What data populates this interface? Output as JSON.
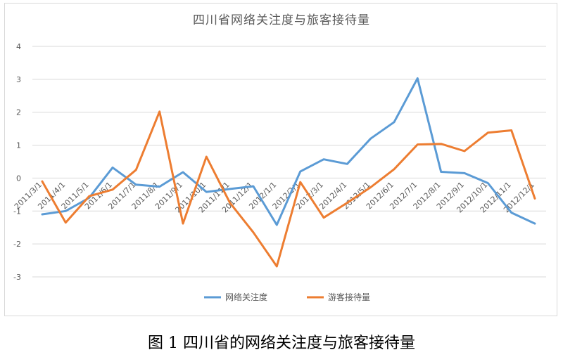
{
  "chart_data": {
    "type": "line",
    "title": "四川省网络关注度与旅客接待量",
    "categories": [
      "2011/3/1",
      "2011/4/1",
      "2011/5/1",
      "2011/6/1",
      "2011/7/1",
      "2011/8/1",
      "2011/9/1",
      "2011/10/1",
      "2011/11/1",
      "2011/12/1",
      "2012/1/1",
      "2012/2/1",
      "2012/3/1",
      "2012/4/1",
      "2012/5/1",
      "2012/6/1",
      "2012/7/1",
      "2012/8/1",
      "2012/9/1",
      "2012/10/1",
      "2012/11/1",
      "2012/12/1"
    ],
    "series": [
      {
        "name": "网络关注度",
        "color": "#5b9bd5",
        "values": [
          -1.1,
          -1.0,
          -0.6,
          0.32,
          -0.2,
          -0.26,
          0.18,
          -0.42,
          -0.33,
          -0.25,
          -1.42,
          0.2,
          0.57,
          0.43,
          1.2,
          1.7,
          3.03,
          0.19,
          0.15,
          -0.15,
          -1.05,
          -1.38
        ]
      },
      {
        "name": "游客接待量",
        "color": "#ed7d31",
        "values": [
          -0.1,
          -1.35,
          -0.55,
          -0.35,
          0.25,
          2.02,
          -1.38,
          0.65,
          -0.75,
          -1.65,
          -2.68,
          -0.12,
          -1.2,
          -0.75,
          -0.28,
          0.27,
          1.02,
          1.04,
          0.82,
          1.38,
          1.45,
          -0.62
        ]
      }
    ],
    "yticks": [
      -3,
      -2,
      -1,
      0,
      1,
      2,
      3,
      4
    ],
    "ylim": [
      -3,
      4
    ],
    "grid": "horizontal",
    "legend_position": "bottom"
  },
  "caption": "图 1 四川省的网络关注度与旅客接待量"
}
